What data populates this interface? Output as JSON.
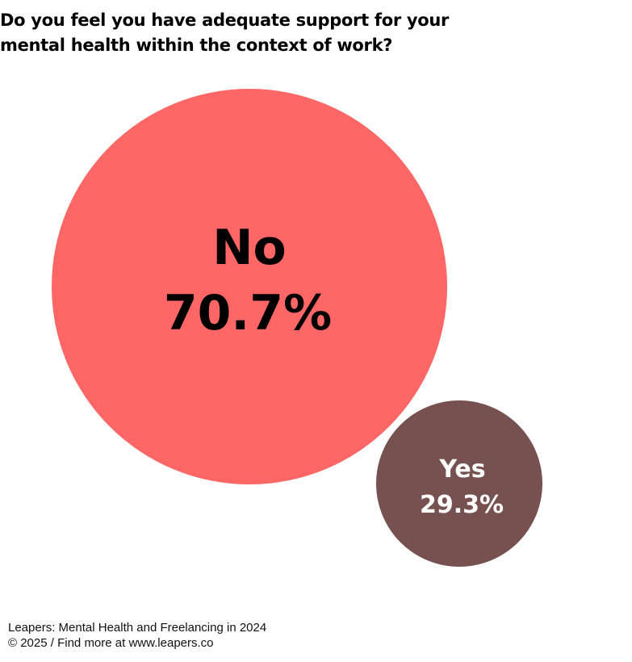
{
  "title": {
    "line1": "Do you feel you have adequate support for your",
    "line2": "mental health within the context of work?"
  },
  "chart_data": {
    "type": "bubble",
    "series": [
      {
        "label": "No",
        "value": 70.7,
        "display": "70.7%",
        "color": "#ff6666",
        "text_color": "#000000"
      },
      {
        "label": "Yes",
        "value": 29.3,
        "display": "29.3%",
        "color": "#765150",
        "text_color": "#ffffff"
      }
    ]
  },
  "footer": {
    "source": "Leapers: Mental Health and Freelancing in 2024",
    "copyright": "© 2025 / Find more at www.leapers.co"
  }
}
